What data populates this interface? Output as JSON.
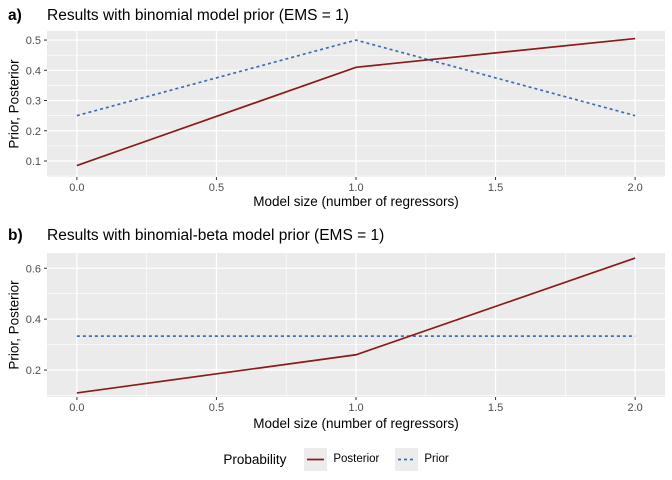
{
  "theme": {
    "panel_fill": "#EBEBEB",
    "grid_color": "#FFFFFF",
    "tick_mark_color": "#333333",
    "tick_label_color": "#4D4D4D",
    "posterior_color": "#8B1A1A",
    "prior_color": "#3E6DB5",
    "legend_key_fill": "#ECECEC"
  },
  "legend": {
    "title": "Probability",
    "items": [
      {
        "label": "Posterior",
        "color": "#8B1A1A",
        "style": "solid"
      },
      {
        "label": "Prior",
        "color": "#3E6DB5",
        "style": "dashed"
      }
    ]
  },
  "chart_data": [
    {
      "type": "line",
      "tag": "a)",
      "title": "Results with binomial model prior (EMS = 1)",
      "xlabel": "Model size (number of regressors)",
      "ylabel": "Prior, Posterior",
      "x": [
        0,
        1,
        2
      ],
      "series": [
        {
          "name": "Posterior",
          "values": [
            0.085,
            0.41,
            0.505
          ],
          "color": "#8B1A1A",
          "dash": "solid"
        },
        {
          "name": "Prior",
          "values": [
            0.25,
            0.5,
            0.25
          ],
          "color": "#3E6DB5",
          "dash": "dashed"
        }
      ],
      "xticks": [
        0,
        0.5,
        1,
        1.5,
        2
      ],
      "xtick_labels": [
        "0.0",
        "0.5",
        "1.0",
        "1.5",
        "2.0"
      ],
      "yticks": [
        0.1,
        0.2,
        0.3,
        0.4,
        0.5
      ],
      "ytick_labels": [
        "0.1",
        "0.2",
        "0.3",
        "0.4",
        "0.5"
      ],
      "xminor": [
        0.25,
        0.75,
        1.25,
        1.75
      ],
      "yminor": [
        0.05,
        0.15,
        0.25,
        0.35,
        0.45
      ],
      "xlim": [
        -0.107,
        2.107
      ],
      "ylim": [
        0.047,
        0.53
      ],
      "grid": true,
      "legend_position": "bottom"
    },
    {
      "type": "line",
      "tag": "b)",
      "title": "Results with binomial-beta model prior (EMS = 1)",
      "xlabel": "Model size (number of regressors)",
      "ylabel": "Prior, Posterior",
      "x": [
        0,
        1,
        2
      ],
      "series": [
        {
          "name": "Posterior",
          "values": [
            0.11,
            0.26,
            0.64
          ],
          "color": "#8B1A1A",
          "dash": "solid"
        },
        {
          "name": "Prior",
          "values": [
            0.3333,
            0.3333,
            0.3333
          ],
          "color": "#3E6DB5",
          "dash": "dashed"
        }
      ],
      "xticks": [
        0,
        0.5,
        1,
        1.5,
        2
      ],
      "xtick_labels": [
        "0.0",
        "0.5",
        "1.0",
        "1.5",
        "2.0"
      ],
      "yticks": [
        0.2,
        0.4,
        0.6
      ],
      "ytick_labels": [
        "0.2",
        "0.4",
        "0.6"
      ],
      "xminor": [
        0.25,
        0.75,
        1.25,
        1.75
      ],
      "yminor": [
        0.1,
        0.3,
        0.5
      ],
      "xlim": [
        -0.107,
        2.107
      ],
      "ylim": [
        0.094,
        0.66
      ],
      "grid": true,
      "legend_position": "bottom"
    }
  ]
}
